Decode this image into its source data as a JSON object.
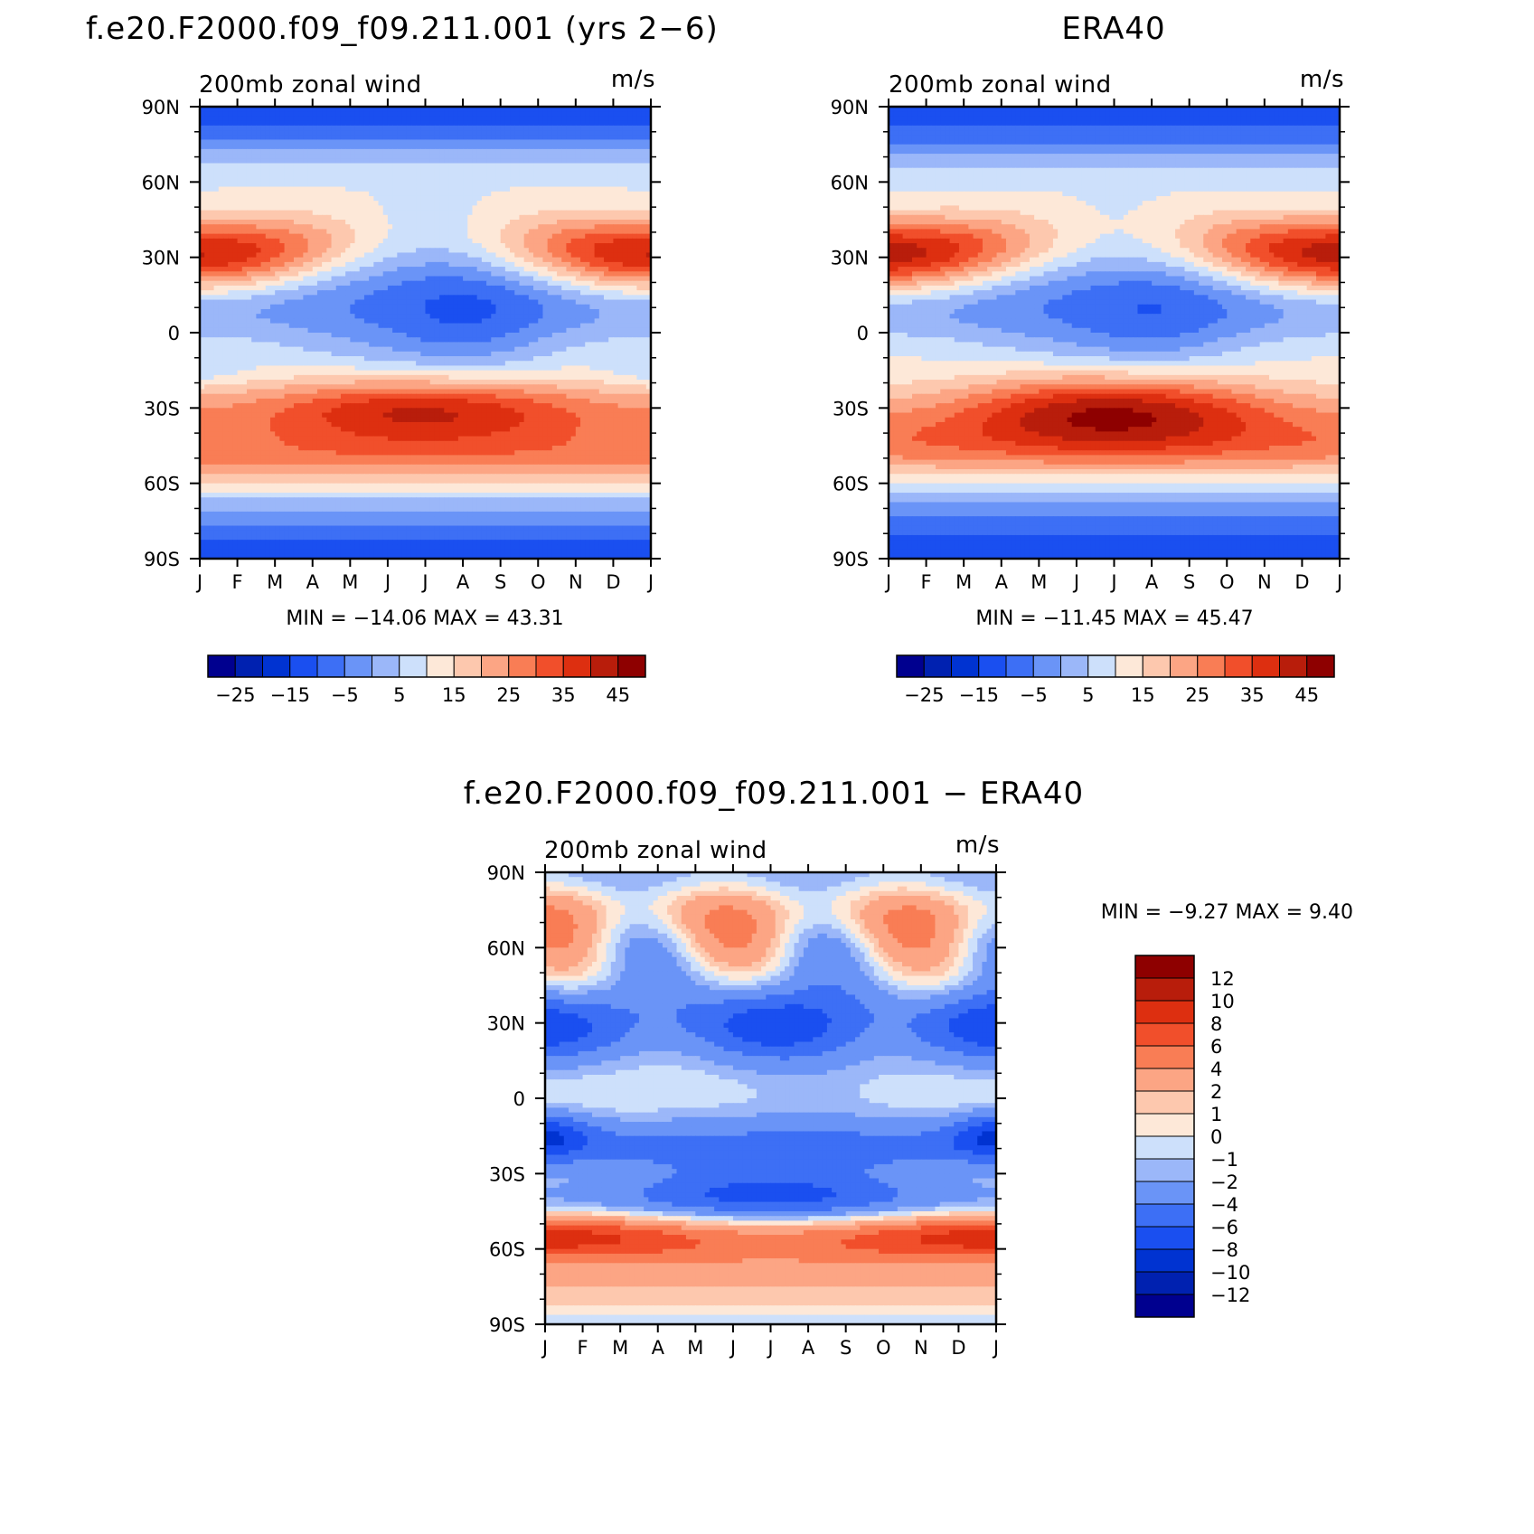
{
  "palette": {
    "wind": [
      "#00008f",
      "#0021b0",
      "#0033d1",
      "#1a4ff0",
      "#3d6ff5",
      "#6a94f7",
      "#9bb7f9",
      "#cde0fb",
      "#fde8d8",
      "#fdc8ae",
      "#fca584",
      "#f97d55",
      "#f14f2b",
      "#dd2f10",
      "#b81d0b",
      "#8e0000"
    ],
    "diff": [
      "#00008f",
      "#0021b0",
      "#0033d1",
      "#1a4ff0",
      "#3d6ff5",
      "#6a94f7",
      "#9bb7f9",
      "#cde0fb",
      "#fde8d8",
      "#fdc8ae",
      "#fca584",
      "#f97d55",
      "#f14f2b",
      "#dd2f10",
      "#b81d0b",
      "#8e0000"
    ]
  },
  "chart_data": [
    {
      "type": "heatmap",
      "title": "f.e20.F2000.f09_f09.211.001 (yrs 2−6)",
      "subtitle": "200mb  zonal  wind",
      "units": "m/s",
      "xticklabels": [
        "J",
        "F",
        "M",
        "A",
        "M",
        "J",
        "J",
        "A",
        "S",
        "O",
        "N",
        "D",
        "J"
      ],
      "yticklabels": [
        "90N",
        "60N",
        "30N",
        "0",
        "30S",
        "60S",
        "90S"
      ],
      "stats": "MIN  =  −14.06  MAX  =    43.31",
      "min": -14.06,
      "max": 43.31,
      "colorbar_labels": [
        "−25",
        "−15",
        "−5",
        "5",
        "15",
        "25",
        "35",
        "45"
      ],
      "field": "model"
    },
    {
      "type": "heatmap",
      "title": "ERA40",
      "subtitle": "200mb  zonal  wind",
      "units": "m/s",
      "xticklabels": [
        "J",
        "F",
        "M",
        "A",
        "M",
        "J",
        "J",
        "A",
        "S",
        "O",
        "N",
        "D",
        "J"
      ],
      "yticklabels": [
        "90N",
        "60N",
        "30N",
        "0",
        "30S",
        "60S",
        "90S"
      ],
      "stats": "MIN  =  −11.45  MAX  =    45.47",
      "min": -11.45,
      "max": 45.47,
      "colorbar_labels": [
        "−25",
        "−15",
        "−5",
        "5",
        "15",
        "25",
        "35",
        "45"
      ],
      "field": "era40"
    },
    {
      "type": "heatmap",
      "title": "f.e20.F2000.f09_f09.211.001  −  ERA40",
      "subtitle": "200mb  zonal  wind",
      "units": "m/s",
      "xticklabels": [
        "J",
        "F",
        "M",
        "A",
        "M",
        "J",
        "J",
        "A",
        "S",
        "O",
        "N",
        "D",
        "J"
      ],
      "yticklabels": [
        "90N",
        "60N",
        "30N",
        "0",
        "30S",
        "60S",
        "90S"
      ],
      "stats": "MIN  =    −9.27  MAX  =     9.40",
      "min": -9.27,
      "max": 9.4,
      "colorbar_labels": [
        "12",
        "10",
        "8",
        "6",
        "4",
        "2",
        "1",
        "0",
        "−1",
        "−2",
        "−4",
        "−6",
        "−8",
        "−10",
        "−12"
      ],
      "field": "diff"
    }
  ]
}
